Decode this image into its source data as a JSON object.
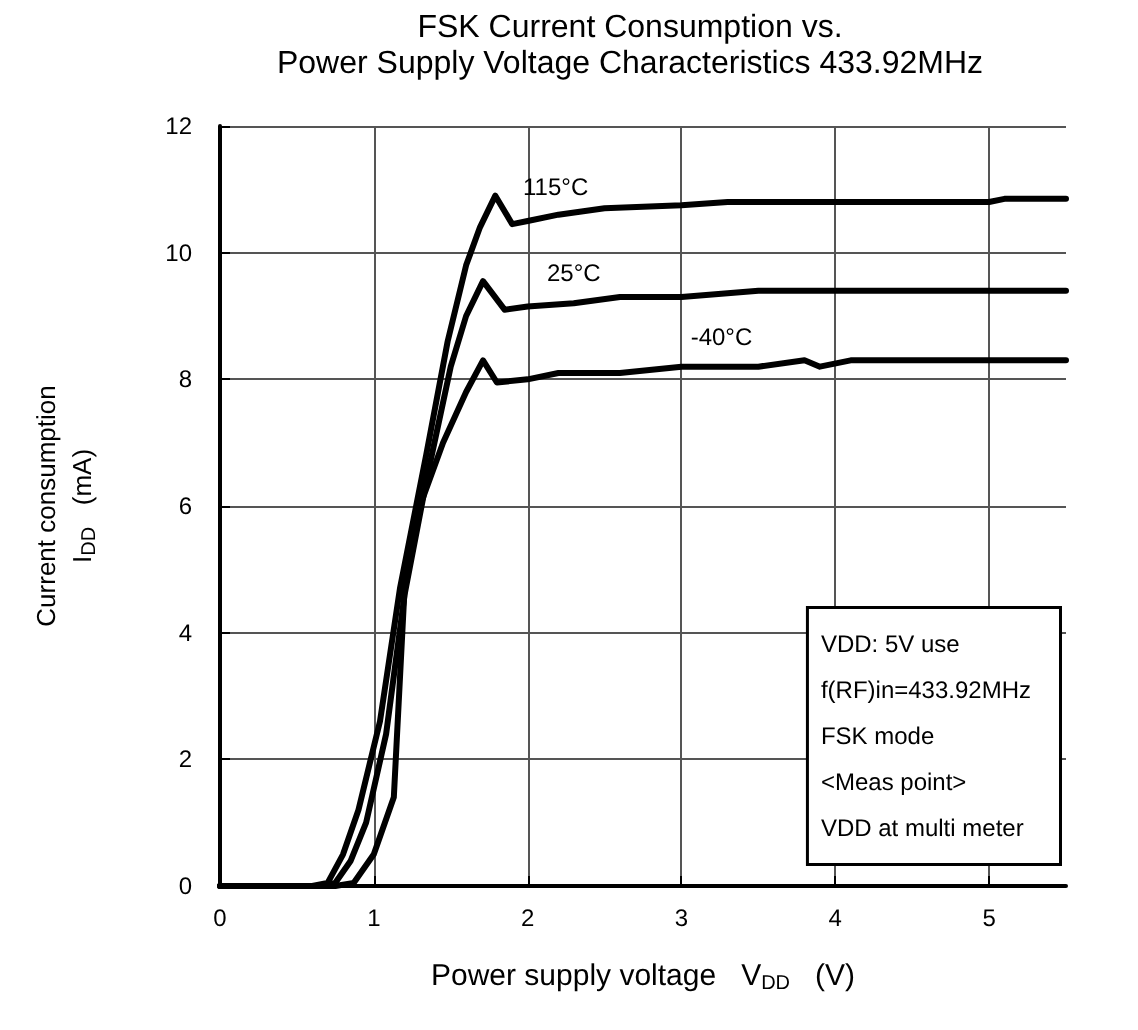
{
  "chart_data": {
    "type": "line",
    "title": "FSK Current Consumption vs.\nPower Supply Voltage Characteristics 433.92MHz",
    "xlabel": "Power supply voltage   V$_{DD}$   (V)",
    "ylabel": "Current consumption\nI$_{DD}$   (mA)",
    "series": [
      {
        "name": "115°C",
        "color": "#000000",
        "x": [
          0,
          0.6,
          0.7,
          0.8,
          0.9,
          1.04,
          1.17,
          1.34,
          1.48,
          1.6,
          1.69,
          1.79,
          1.9,
          2.0,
          2.2,
          2.5,
          3.0,
          3.3,
          4.0,
          5.0,
          5.1,
          5.5
        ],
        "values": [
          0,
          0,
          0.05,
          0.5,
          1.2,
          2.6,
          4.7,
          6.8,
          8.6,
          9.8,
          10.4,
          10.9,
          10.45,
          10.5,
          10.6,
          10.7,
          10.75,
          10.8,
          10.8,
          10.8,
          10.85,
          10.85
        ]
      },
      {
        "name": "25°C",
        "color": "#000000",
        "x": [
          0,
          0.65,
          0.75,
          0.85,
          0.95,
          1.08,
          1.2,
          1.35,
          1.5,
          1.6,
          1.71,
          1.85,
          2.0,
          2.3,
          2.6,
          3.0,
          3.5,
          4.0,
          5.0,
          5.5
        ],
        "values": [
          0,
          0,
          0.05,
          0.4,
          1.0,
          2.4,
          4.6,
          6.5,
          8.2,
          9.0,
          9.55,
          9.1,
          9.15,
          9.2,
          9.3,
          9.3,
          9.4,
          9.4,
          9.4,
          9.4
        ]
      },
      {
        "name": "-40°C",
        "color": "#000000",
        "x": [
          0,
          0.75,
          0.87,
          1.0,
          1.13,
          1.2,
          1.3,
          1.45,
          1.6,
          1.71,
          1.8,
          2.0,
          2.2,
          2.6,
          3.0,
          3.5,
          3.8,
          3.9,
          4.1,
          4.2,
          4.4,
          5.0,
          5.5
        ],
        "values": [
          0,
          0,
          0.05,
          0.5,
          1.4,
          4.7,
          6.0,
          7.0,
          7.8,
          8.3,
          7.95,
          8.0,
          8.1,
          8.1,
          8.2,
          8.2,
          8.3,
          8.2,
          8.3,
          8.3,
          8.3,
          8.3,
          8.3
        ]
      }
    ],
    "annotations": [
      "VDD: 5V use\nf(RF)in=433.92MHz\nFSK mode\n<Meas point>\nVDD at multi meter"
    ],
    "xlim": [
      0,
      5.5
    ],
    "xticks": [
      0,
      1,
      2,
      3,
      4,
      5
    ],
    "ylim": [
      0,
      12
    ],
    "yticks": [
      0,
      2,
      4,
      6,
      8,
      10,
      12
    ],
    "grid": true,
    "legend": false,
    "marker": "none",
    "line_style": "solid"
  }
}
